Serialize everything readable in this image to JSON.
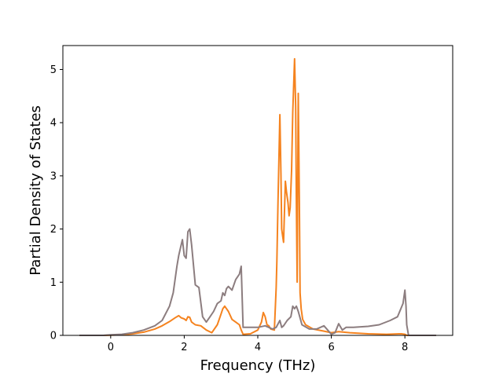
{
  "chart_data": {
    "type": "line",
    "title": "",
    "xlabel": "Frequency (THz)",
    "ylabel": "Partial Density of States",
    "xlim": [
      -1.3,
      9.3
    ],
    "ylim": [
      0,
      5.45
    ],
    "xticks": [
      0,
      2,
      4,
      6,
      8
    ],
    "yticks": [
      0,
      1,
      2,
      3,
      4,
      5
    ],
    "grid": false,
    "legend": "none",
    "series": [
      {
        "color": "#f5831f",
        "x": [
          -0.85,
          -0.2,
          0,
          0.3,
          0.6,
          0.9,
          1.2,
          1.4,
          1.6,
          1.75,
          1.85,
          1.92,
          2.0,
          2.05,
          2.1,
          2.15,
          2.2,
          2.3,
          2.45,
          2.6,
          2.75,
          2.9,
          3.0,
          3.05,
          3.1,
          3.15,
          3.2,
          3.3,
          3.4,
          3.5,
          3.55,
          3.6,
          3.8,
          4.0,
          4.1,
          4.15,
          4.2,
          4.25,
          4.3,
          4.35,
          4.45,
          4.5,
          4.52,
          4.55,
          4.6,
          4.63,
          4.65,
          4.68,
          4.7,
          4.75,
          4.78,
          4.82,
          4.85,
          4.88,
          4.92,
          4.95,
          5.0,
          5.03,
          5.05,
          5.07,
          5.1,
          5.13,
          5.15,
          5.18,
          5.22,
          5.3,
          5.5,
          5.8,
          6.0,
          6.2,
          6.5,
          7.0,
          7.5,
          7.9,
          8.0,
          8.05,
          8.1,
          8.85
        ],
        "values": [
          0,
          0,
          0.005,
          0.01,
          0.03,
          0.06,
          0.12,
          0.18,
          0.26,
          0.33,
          0.37,
          0.33,
          0.31,
          0.28,
          0.35,
          0.34,
          0.25,
          0.2,
          0.18,
          0.1,
          0.05,
          0.2,
          0.4,
          0.5,
          0.55,
          0.5,
          0.45,
          0.3,
          0.25,
          0.2,
          0.1,
          0.02,
          0.03,
          0.1,
          0.25,
          0.43,
          0.35,
          0.2,
          0.18,
          0.12,
          0.1,
          0.9,
          1.4,
          2.5,
          4.15,
          3.0,
          2.0,
          1.85,
          1.75,
          2.9,
          2.7,
          2.5,
          2.25,
          2.4,
          3.1,
          4.2,
          5.2,
          4.3,
          2.5,
          1.0,
          4.55,
          2.5,
          0.8,
          0.5,
          0.3,
          0.2,
          0.12,
          0.08,
          0.05,
          0.07,
          0.05,
          0.03,
          0.02,
          0.03,
          0.02,
          0,
          0,
          0
        ]
      },
      {
        "color": "#8c7d7f",
        "x": [
          -0.85,
          -0.2,
          0,
          0.3,
          0.6,
          0.9,
          1.2,
          1.4,
          1.6,
          1.7,
          1.8,
          1.85,
          1.9,
          1.95,
          2.0,
          2.05,
          2.1,
          2.15,
          2.2,
          2.3,
          2.4,
          2.5,
          2.6,
          2.7,
          2.8,
          2.9,
          3.0,
          3.05,
          3.1,
          3.15,
          3.2,
          3.3,
          3.4,
          3.5,
          3.55,
          3.6,
          3.8,
          4.0,
          4.2,
          4.4,
          4.5,
          4.6,
          4.65,
          4.7,
          4.8,
          4.9,
          4.95,
          5.0,
          5.05,
          5.1,
          5.2,
          5.4,
          5.6,
          5.8,
          5.9,
          6.0,
          6.1,
          6.2,
          6.3,
          6.4,
          6.6,
          7.0,
          7.3,
          7.6,
          7.8,
          7.95,
          8.0,
          8.03,
          8.05,
          8.1,
          8.85
        ],
        "values": [
          0,
          0,
          0.01,
          0.02,
          0.05,
          0.1,
          0.18,
          0.28,
          0.55,
          0.8,
          1.3,
          1.5,
          1.65,
          1.8,
          1.5,
          1.45,
          1.95,
          2.0,
          1.7,
          0.95,
          0.9,
          0.35,
          0.25,
          0.35,
          0.45,
          0.6,
          0.65,
          0.8,
          0.75,
          0.88,
          0.92,
          0.85,
          1.05,
          1.15,
          1.3,
          0.15,
          0.15,
          0.15,
          0.18,
          0.12,
          0.15,
          0.28,
          0.15,
          0.18,
          0.28,
          0.35,
          0.55,
          0.5,
          0.55,
          0.45,
          0.2,
          0.12,
          0.12,
          0.18,
          0.1,
          0.02,
          0.05,
          0.22,
          0.1,
          0.15,
          0.15,
          0.17,
          0.2,
          0.28,
          0.35,
          0.6,
          0.85,
          0.55,
          0.2,
          0,
          0
        ]
      }
    ]
  }
}
